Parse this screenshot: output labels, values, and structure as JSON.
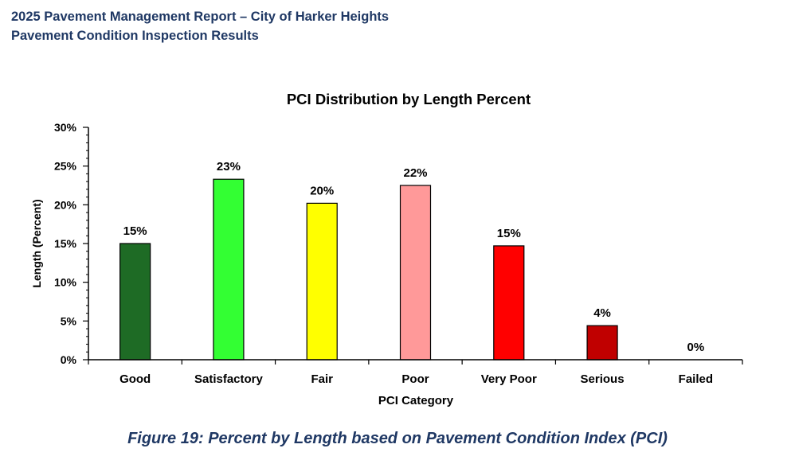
{
  "header": {
    "title": "2025 Pavement Management Report – City of Harker Heights",
    "subtitle": "Pavement Condition Inspection Results"
  },
  "chart_data": {
    "type": "bar",
    "title": "PCI Distribution by Length Percent",
    "xlabel": "PCI Category",
    "ylabel": "Length (Percent)",
    "categories": [
      "Good",
      "Satisfactory",
      "Fair",
      "Poor",
      "Very Poor",
      "Serious",
      "Failed"
    ],
    "values": [
      15,
      23.3,
      20.2,
      22.5,
      14.7,
      4.4,
      0
    ],
    "value_labels": [
      "15%",
      "23%",
      "20%",
      "22%",
      "15%",
      "4%",
      "0%"
    ],
    "bar_colors": [
      "#1e6b25",
      "#33ff33",
      "#ffff00",
      "#ff9999",
      "#ff0000",
      "#c00000",
      "#808080"
    ],
    "ylim": [
      0,
      30
    ],
    "yticks": [
      0,
      5,
      10,
      15,
      20,
      25,
      30
    ],
    "ytick_labels": [
      "0%",
      "5%",
      "10%",
      "15%",
      "20%",
      "25%",
      "30%"
    ],
    "grid": false,
    "legend": "none"
  },
  "caption": "Figure 19: Percent by Length based on Pavement Condition Index (PCI)"
}
